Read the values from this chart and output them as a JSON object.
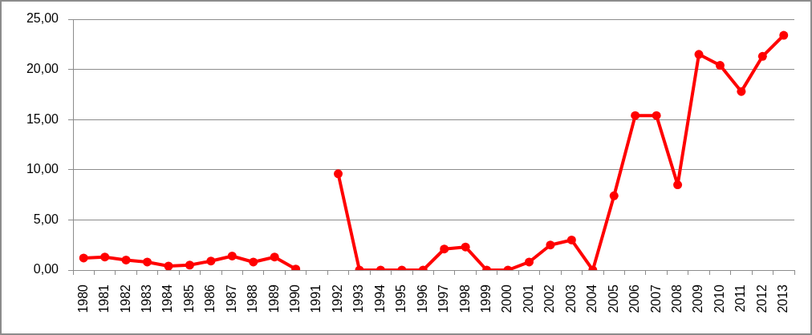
{
  "chart_data": {
    "type": "line",
    "categories": [
      "1980",
      "1981",
      "1982",
      "1983",
      "1984",
      "1985",
      "1986",
      "1987",
      "1988",
      "1989",
      "1990",
      "1991",
      "1992",
      "1993",
      "1994",
      "1995",
      "1996",
      "1997",
      "1998",
      "1999",
      "2000",
      "2001",
      "2002",
      "2003",
      "2004",
      "2005",
      "2006",
      "2007",
      "2008",
      "2009",
      "2010",
      "2011",
      "2012",
      "2013"
    ],
    "series": [
      {
        "color": "#ff0000",
        "values": [
          1.2,
          1.3,
          1.0,
          0.8,
          0.4,
          0.5,
          0.9,
          1.4,
          0.8,
          1.3,
          0.1,
          null,
          9.6,
          0,
          0,
          0,
          0,
          2.1,
          2.3,
          0,
          0,
          0.8,
          2.5,
          3.0,
          0,
          7.4,
          15.4,
          15.4,
          8.5,
          21.5,
          20.4,
          17.8,
          21.3,
          23.4
        ]
      }
    ],
    "ylim": [
      0,
      25
    ],
    "yticks": [
      {
        "value": 0,
        "label": "0,00"
      },
      {
        "value": 5,
        "label": "5,00"
      },
      {
        "value": 10,
        "label": "10,00"
      },
      {
        "value": 15,
        "label": "15,00"
      },
      {
        "value": 20,
        "label": "20,00"
      },
      {
        "value": 25,
        "label": "25,00"
      }
    ],
    "grid": "y",
    "marker": "circle",
    "line_style": "solid"
  }
}
